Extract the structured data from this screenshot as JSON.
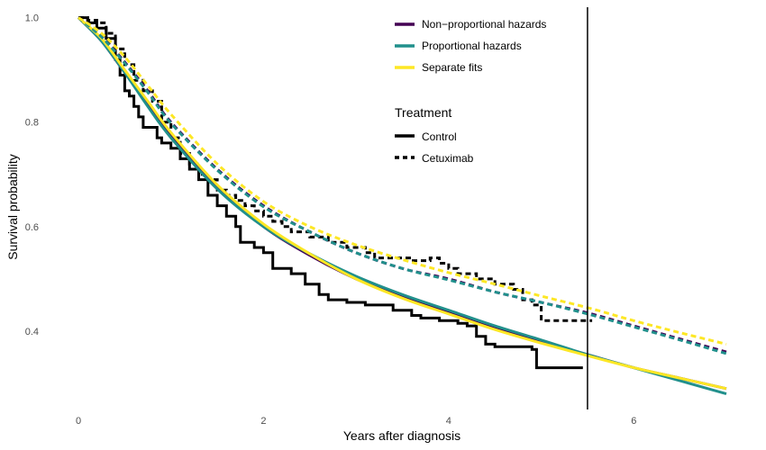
{
  "chart_data": {
    "type": "line",
    "title": "",
    "xlabel": "Years after diagnosis",
    "ylabel": "Survival probability",
    "xlim": [
      0,
      7
    ],
    "ylim": [
      0.25,
      1.02
    ],
    "x_ticks": [
      "0",
      "2",
      "4",
      "6"
    ],
    "y_ticks": [
      "0.4",
      "0.6",
      "0.8",
      "1.0"
    ],
    "grid": false,
    "vertical_line_x": 5.5,
    "legend_models": {
      "title": "",
      "placement": "top-right",
      "entries": [
        {
          "label": "Non−proportional hazards",
          "color": "#440154"
        },
        {
          "label": "Proportional hazards",
          "color": "#21908C"
        },
        {
          "label": "Separate fits",
          "color": "#FDE725"
        }
      ]
    },
    "legend_treatment": {
      "title": "Treatment",
      "entries": [
        {
          "label": "Control",
          "dash": "solid"
        },
        {
          "label": "Cetuximab",
          "dash": "dashed"
        }
      ]
    },
    "kaplan_meier": [
      {
        "treatment": "Control",
        "color": "#000000",
        "dash": "solid",
        "points": [
          [
            0,
            1.0
          ],
          [
            0.1,
            0.99
          ],
          [
            0.2,
            0.98
          ],
          [
            0.3,
            0.96
          ],
          [
            0.4,
            0.92
          ],
          [
            0.45,
            0.89
          ],
          [
            0.5,
            0.86
          ],
          [
            0.55,
            0.85
          ],
          [
            0.6,
            0.83
          ],
          [
            0.65,
            0.81
          ],
          [
            0.7,
            0.79
          ],
          [
            0.8,
            0.79
          ],
          [
            0.85,
            0.77
          ],
          [
            0.9,
            0.76
          ],
          [
            1.0,
            0.75
          ],
          [
            1.1,
            0.73
          ],
          [
            1.2,
            0.71
          ],
          [
            1.3,
            0.69
          ],
          [
            1.4,
            0.66
          ],
          [
            1.5,
            0.64
          ],
          [
            1.6,
            0.62
          ],
          [
            1.7,
            0.6
          ],
          [
            1.75,
            0.57
          ],
          [
            1.9,
            0.56
          ],
          [
            2.0,
            0.55
          ],
          [
            2.1,
            0.52
          ],
          [
            2.3,
            0.51
          ],
          [
            2.45,
            0.49
          ],
          [
            2.6,
            0.47
          ],
          [
            2.7,
            0.46
          ],
          [
            2.9,
            0.455
          ],
          [
            3.1,
            0.45
          ],
          [
            3.3,
            0.45
          ],
          [
            3.4,
            0.44
          ],
          [
            3.6,
            0.43
          ],
          [
            3.7,
            0.425
          ],
          [
            3.9,
            0.42
          ],
          [
            4.1,
            0.415
          ],
          [
            4.2,
            0.41
          ],
          [
            4.3,
            0.39
          ],
          [
            4.4,
            0.375
          ],
          [
            4.5,
            0.37
          ],
          [
            4.9,
            0.365
          ],
          [
            4.95,
            0.33
          ],
          [
            5.45,
            0.33
          ]
        ]
      },
      {
        "treatment": "Cetuximab",
        "color": "#000000",
        "dash": "dashed",
        "points": [
          [
            0,
            1.0
          ],
          [
            0.1,
            0.995
          ],
          [
            0.2,
            0.99
          ],
          [
            0.3,
            0.97
          ],
          [
            0.4,
            0.94
          ],
          [
            0.5,
            0.91
          ],
          [
            0.6,
            0.88
          ],
          [
            0.7,
            0.86
          ],
          [
            0.8,
            0.84
          ],
          [
            0.9,
            0.8
          ],
          [
            1.0,
            0.77
          ],
          [
            1.1,
            0.74
          ],
          [
            1.2,
            0.72
          ],
          [
            1.3,
            0.7
          ],
          [
            1.4,
            0.69
          ],
          [
            1.5,
            0.67
          ],
          [
            1.6,
            0.66
          ],
          [
            1.7,
            0.65
          ],
          [
            1.8,
            0.64
          ],
          [
            1.9,
            0.63
          ],
          [
            2.0,
            0.62
          ],
          [
            2.1,
            0.61
          ],
          [
            2.2,
            0.6
          ],
          [
            2.3,
            0.59
          ],
          [
            2.5,
            0.58
          ],
          [
            2.7,
            0.57
          ],
          [
            2.9,
            0.56
          ],
          [
            3.1,
            0.55
          ],
          [
            3.2,
            0.54
          ],
          [
            3.4,
            0.54
          ],
          [
            3.6,
            0.535
          ],
          [
            3.8,
            0.54
          ],
          [
            3.9,
            0.53
          ],
          [
            4.0,
            0.52
          ],
          [
            4.1,
            0.51
          ],
          [
            4.3,
            0.5
          ],
          [
            4.5,
            0.49
          ],
          [
            4.7,
            0.48
          ],
          [
            4.8,
            0.46
          ],
          [
            4.9,
            0.45
          ],
          [
            5.0,
            0.42
          ],
          [
            5.55,
            0.42
          ]
        ]
      }
    ],
    "series": [
      {
        "name": "Non−proportional hazards",
        "treatment": "Control",
        "color": "#440154",
        "dash": "solid",
        "points": [
          [
            0,
            1.0
          ],
          [
            0.25,
            0.955
          ],
          [
            0.5,
            0.895
          ],
          [
            0.75,
            0.835
          ],
          [
            1.0,
            0.775
          ],
          [
            1.5,
            0.675
          ],
          [
            2.0,
            0.6
          ],
          [
            2.5,
            0.545
          ],
          [
            3.0,
            0.5
          ],
          [
            3.5,
            0.465
          ],
          [
            4.0,
            0.435
          ],
          [
            4.5,
            0.405
          ],
          [
            5.0,
            0.38
          ],
          [
            5.5,
            0.355
          ],
          [
            6.0,
            0.33
          ],
          [
            6.5,
            0.31
          ],
          [
            7.0,
            0.29
          ]
        ]
      },
      {
        "name": "Proportional hazards",
        "treatment": "Control",
        "color": "#21908C",
        "dash": "solid",
        "points": [
          [
            0,
            1.0
          ],
          [
            0.25,
            0.955
          ],
          [
            0.5,
            0.895
          ],
          [
            0.75,
            0.83
          ],
          [
            1.0,
            0.77
          ],
          [
            1.5,
            0.672
          ],
          [
            2.0,
            0.6
          ],
          [
            2.5,
            0.548
          ],
          [
            3.0,
            0.505
          ],
          [
            3.5,
            0.47
          ],
          [
            4.0,
            0.44
          ],
          [
            4.5,
            0.41
          ],
          [
            5.0,
            0.383
          ],
          [
            5.5,
            0.355
          ],
          [
            6.0,
            0.33
          ],
          [
            6.5,
            0.305
          ],
          [
            7.0,
            0.28
          ]
        ]
      },
      {
        "name": "Separate fits",
        "treatment": "Control",
        "color": "#FDE725",
        "dash": "solid",
        "points": [
          [
            0,
            1.0
          ],
          [
            0.25,
            0.96
          ],
          [
            0.5,
            0.9
          ],
          [
            0.75,
            0.84
          ],
          [
            1.0,
            0.78
          ],
          [
            1.5,
            0.68
          ],
          [
            2.0,
            0.605
          ],
          [
            2.5,
            0.548
          ],
          [
            3.0,
            0.5
          ],
          [
            3.5,
            0.463
          ],
          [
            4.0,
            0.433
          ],
          [
            4.5,
            0.403
          ],
          [
            5.0,
            0.377
          ],
          [
            5.5,
            0.353
          ],
          [
            6.0,
            0.33
          ],
          [
            6.5,
            0.31
          ],
          [
            7.0,
            0.29
          ]
        ]
      },
      {
        "name": "Non−proportional hazards",
        "treatment": "Cetuximab",
        "color": "#440154",
        "dash": "dashed",
        "points": [
          [
            0,
            1.0
          ],
          [
            0.25,
            0.965
          ],
          [
            0.5,
            0.915
          ],
          [
            0.75,
            0.86
          ],
          [
            1.0,
            0.8
          ],
          [
            1.5,
            0.71
          ],
          [
            2.0,
            0.64
          ],
          [
            2.5,
            0.59
          ],
          [
            3.0,
            0.55
          ],
          [
            3.5,
            0.52
          ],
          [
            4.0,
            0.5
          ],
          [
            4.5,
            0.475
          ],
          [
            5.0,
            0.455
          ],
          [
            5.5,
            0.435
          ],
          [
            6.0,
            0.41
          ],
          [
            6.5,
            0.385
          ],
          [
            7.0,
            0.36
          ]
        ]
      },
      {
        "name": "Proportional hazards",
        "treatment": "Cetuximab",
        "color": "#21908C",
        "dash": "dashed",
        "points": [
          [
            0,
            1.0
          ],
          [
            0.25,
            0.963
          ],
          [
            0.5,
            0.913
          ],
          [
            0.75,
            0.857
          ],
          [
            1.0,
            0.798
          ],
          [
            1.5,
            0.708
          ],
          [
            2.0,
            0.638
          ],
          [
            2.5,
            0.59
          ],
          [
            3.0,
            0.55
          ],
          [
            3.5,
            0.52
          ],
          [
            4.0,
            0.498
          ],
          [
            4.5,
            0.475
          ],
          [
            5.0,
            0.455
          ],
          [
            5.5,
            0.433
          ],
          [
            6.0,
            0.408
          ],
          [
            6.5,
            0.383
          ],
          [
            7.0,
            0.357
          ]
        ]
      },
      {
        "name": "Separate fits",
        "treatment": "Cetuximab",
        "color": "#FDE725",
        "dash": "dashed",
        "points": [
          [
            0,
            1.0
          ],
          [
            0.25,
            0.97
          ],
          [
            0.5,
            0.925
          ],
          [
            0.75,
            0.87
          ],
          [
            1.0,
            0.815
          ],
          [
            1.5,
            0.72
          ],
          [
            2.0,
            0.648
          ],
          [
            2.5,
            0.6
          ],
          [
            3.0,
            0.565
          ],
          [
            3.5,
            0.537
          ],
          [
            4.0,
            0.512
          ],
          [
            4.5,
            0.49
          ],
          [
            5.0,
            0.467
          ],
          [
            5.5,
            0.445
          ],
          [
            6.0,
            0.42
          ],
          [
            6.5,
            0.397
          ],
          [
            7.0,
            0.375
          ]
        ]
      }
    ]
  }
}
